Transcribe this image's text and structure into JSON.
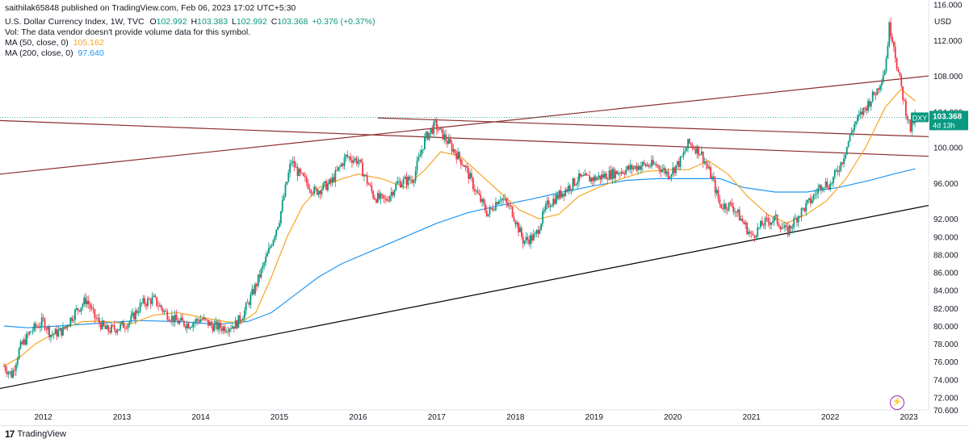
{
  "header": {
    "publisher_line": "saithilak65848 published on TradingView.com, Feb 06, 2023 17:02 UTC+5:30",
    "symbol_title": "U.S. Dollar Currency Index, 1W, TVC",
    "ohlc": {
      "o_label": "O",
      "o": "102.992",
      "h_label": "H",
      "h": "103.383",
      "l_label": "L",
      "l": "102.992",
      "c_label": "C",
      "c": "103.368",
      "change": "+0.376 (+0.37%)"
    },
    "vol_text": "Vol: The data vendor doesn't provide volume data for this symbol.",
    "ma50_label": "MA (50, close, 0)",
    "ma50_value": "105.162",
    "ma200_label": "MA (200, close, 0)",
    "ma200_value": "97.640"
  },
  "price_badge": {
    "symbol": "DXY",
    "price": "103.368",
    "countdown": "4d 13h"
  },
  "footer": {
    "brand": "TradingView",
    "logo_mark": "17"
  },
  "colors": {
    "up": "#089981",
    "down": "#f23645",
    "ma50": "#f5a623",
    "ma200": "#2196f3",
    "trend_red": "#8b2e2e",
    "trend_black": "#000000"
  },
  "chart_data": {
    "type": "candlestick",
    "timeframe": "1W",
    "currency_label": "USD",
    "y_ticks": [
      "116.000",
      "112.000",
      "108.000",
      "104.000",
      "100.000",
      "96.000",
      "92.000",
      "90.000",
      "88.000",
      "86.000",
      "84.000",
      "82.000",
      "80.000",
      "78.000",
      "76.000",
      "74.000",
      "72.000",
      "70.600"
    ],
    "x_ticks": [
      "2012",
      "2013",
      "2014",
      "2015",
      "2016",
      "2017",
      "2018",
      "2019",
      "2020",
      "2021",
      "2022",
      "2023"
    ],
    "ylim": [
      70.6,
      116.5
    ],
    "xlim": [
      2011.45,
      2023.25
    ],
    "price_path": [
      [
        2011.5,
        75.5
      ],
      [
        2011.6,
        74.5
      ],
      [
        2011.7,
        77.5
      ],
      [
        2011.85,
        79.5
      ],
      [
        2012.0,
        80.5
      ],
      [
        2012.1,
        79.0
      ],
      [
        2012.25,
        79.5
      ],
      [
        2012.4,
        81.5
      ],
      [
        2012.55,
        83.0
      ],
      [
        2012.65,
        81.0
      ],
      [
        2012.8,
        79.5
      ],
      [
        2012.95,
        79.8
      ],
      [
        2013.1,
        80.5
      ],
      [
        2013.25,
        82.5
      ],
      [
        2013.4,
        83.0
      ],
      [
        2013.55,
        81.5
      ],
      [
        2013.7,
        80.5
      ],
      [
        2013.85,
        80.2
      ],
      [
        2014.0,
        80.8
      ],
      [
        2014.15,
        80.0
      ],
      [
        2014.3,
        79.8
      ],
      [
        2014.45,
        80.2
      ],
      [
        2014.55,
        81.5
      ],
      [
        2014.7,
        84.5
      ],
      [
        2014.85,
        88.0
      ],
      [
        2015.0,
        92.0
      ],
      [
        2015.15,
        98.5
      ],
      [
        2015.25,
        97.0
      ],
      [
        2015.45,
        95.0
      ],
      [
        2015.65,
        96.0
      ],
      [
        2015.85,
        99.0
      ],
      [
        2016.0,
        98.5
      ],
      [
        2016.2,
        94.5
      ],
      [
        2016.35,
        94.0
      ],
      [
        2016.5,
        96.0
      ],
      [
        2016.7,
        96.5
      ],
      [
        2016.85,
        101.0
      ],
      [
        2016.98,
        102.5
      ],
      [
        2017.15,
        100.5
      ],
      [
        2017.35,
        98.0
      ],
      [
        2017.5,
        95.0
      ],
      [
        2017.65,
        92.5
      ],
      [
        2017.8,
        94.5
      ],
      [
        2017.95,
        93.0
      ],
      [
        2018.1,
        89.5
      ],
      [
        2018.25,
        90.0
      ],
      [
        2018.4,
        93.5
      ],
      [
        2018.6,
        95.0
      ],
      [
        2018.8,
        96.5
      ],
      [
        2019.0,
        96.5
      ],
      [
        2019.2,
        97.0
      ],
      [
        2019.4,
        97.5
      ],
      [
        2019.6,
        98.0
      ],
      [
        2019.8,
        98.0
      ],
      [
        2019.95,
        97.0
      ],
      [
        2020.1,
        98.5
      ],
      [
        2020.2,
        100.5
      ],
      [
        2020.35,
        99.5
      ],
      [
        2020.5,
        96.5
      ],
      [
        2020.6,
        93.5
      ],
      [
        2020.75,
        93.5
      ],
      [
        2020.9,
        91.5
      ],
      [
        2021.0,
        90.0
      ],
      [
        2021.15,
        91.5
      ],
      [
        2021.3,
        92.0
      ],
      [
        2021.45,
        90.5
      ],
      [
        2021.6,
        92.5
      ],
      [
        2021.75,
        94.0
      ],
      [
        2021.9,
        96.0
      ],
      [
        2022.0,
        95.8
      ],
      [
        2022.15,
        98.5
      ],
      [
        2022.3,
        102.5
      ],
      [
        2022.45,
        104.5
      ],
      [
        2022.6,
        106.5
      ],
      [
        2022.7,
        109.0
      ],
      [
        2022.75,
        113.5
      ],
      [
        2022.8,
        112.0
      ],
      [
        2022.85,
        109.0
      ],
      [
        2022.95,
        104.5
      ],
      [
        2023.02,
        102.0
      ],
      [
        2023.08,
        103.4
      ]
    ],
    "ma50_path": [
      [
        2011.5,
        75.5
      ],
      [
        2011.7,
        76.5
      ],
      [
        2011.9,
        78.0
      ],
      [
        2012.2,
        79.5
      ],
      [
        2012.5,
        80.5
      ],
      [
        2012.8,
        80.5
      ],
      [
        2013.1,
        80.2
      ],
      [
        2013.4,
        81.2
      ],
      [
        2013.7,
        81.5
      ],
      [
        2014.0,
        81.0
      ],
      [
        2014.3,
        80.5
      ],
      [
        2014.5,
        80.3
      ],
      [
        2014.7,
        81.5
      ],
      [
        2014.9,
        85.5
      ],
      [
        2015.1,
        90.0
      ],
      [
        2015.3,
        93.5
      ],
      [
        2015.5,
        95.5
      ],
      [
        2015.8,
        96.5
      ],
      [
        2016.0,
        97.0
      ],
      [
        2016.3,
        96.5
      ],
      [
        2016.6,
        95.5
      ],
      [
        2016.85,
        97.5
      ],
      [
        2017.05,
        99.5
      ],
      [
        2017.3,
        99.0
      ],
      [
        2017.55,
        97.0
      ],
      [
        2017.8,
        95.0
      ],
      [
        2018.05,
        93.0
      ],
      [
        2018.3,
        92.0
      ],
      [
        2018.55,
        92.5
      ],
      [
        2018.8,
        94.5
      ],
      [
        2019.05,
        95.5
      ],
      [
        2019.35,
        96.5
      ],
      [
        2019.65,
        97.3
      ],
      [
        2019.95,
        97.5
      ],
      [
        2020.2,
        97.5
      ],
      [
        2020.45,
        98.5
      ],
      [
        2020.7,
        97.0
      ],
      [
        2020.95,
        94.5
      ],
      [
        2021.2,
        92.5
      ],
      [
        2021.45,
        91.5
      ],
      [
        2021.7,
        92.5
      ],
      [
        2021.95,
        94.0
      ],
      [
        2022.2,
        96.5
      ],
      [
        2022.45,
        100.0
      ],
      [
        2022.7,
        104.5
      ],
      [
        2022.9,
        106.5
      ],
      [
        2023.08,
        105.2
      ]
    ],
    "ma200_path": [
      [
        2011.5,
        80.0
      ],
      [
        2011.8,
        79.8
      ],
      [
        2012.2,
        80.0
      ],
      [
        2012.7,
        80.3
      ],
      [
        2013.2,
        80.6
      ],
      [
        2013.7,
        80.5
      ],
      [
        2014.2,
        80.2
      ],
      [
        2014.6,
        80.5
      ],
      [
        2014.9,
        81.5
      ],
      [
        2015.2,
        83.5
      ],
      [
        2015.5,
        85.5
      ],
      [
        2015.8,
        87.0
      ],
      [
        2016.2,
        88.5
      ],
      [
        2016.6,
        90.0
      ],
      [
        2017.0,
        91.5
      ],
      [
        2017.4,
        92.7
      ],
      [
        2017.8,
        93.5
      ],
      [
        2018.2,
        94.2
      ],
      [
        2018.6,
        95.0
      ],
      [
        2019.0,
        95.7
      ],
      [
        2019.4,
        96.3
      ],
      [
        2019.8,
        96.5
      ],
      [
        2020.2,
        96.5
      ],
      [
        2020.6,
        96.5
      ],
      [
        2020.9,
        95.5
      ],
      [
        2021.3,
        95.0
      ],
      [
        2021.7,
        95.0
      ],
      [
        2022.1,
        95.5
      ],
      [
        2022.5,
        96.3
      ],
      [
        2022.8,
        97.0
      ],
      [
        2023.08,
        97.6
      ]
    ],
    "trendlines": [
      {
        "color": "trend_red",
        "from": [
          2011.45,
          103.0
        ],
        "to": [
          2023.25,
          99.0
        ]
      },
      {
        "color": "trend_red",
        "from": [
          2011.45,
          97.0
        ],
        "to": [
          2023.25,
          108.0
        ]
      },
      {
        "color": "trend_red",
        "from": [
          2016.25,
          103.3
        ],
        "to": [
          2023.25,
          101.2
        ]
      },
      {
        "color": "trend_black",
        "from": [
          2011.45,
          73.0
        ],
        "to": [
          2023.25,
          93.5
        ]
      }
    ],
    "last_price": 103.368
  }
}
